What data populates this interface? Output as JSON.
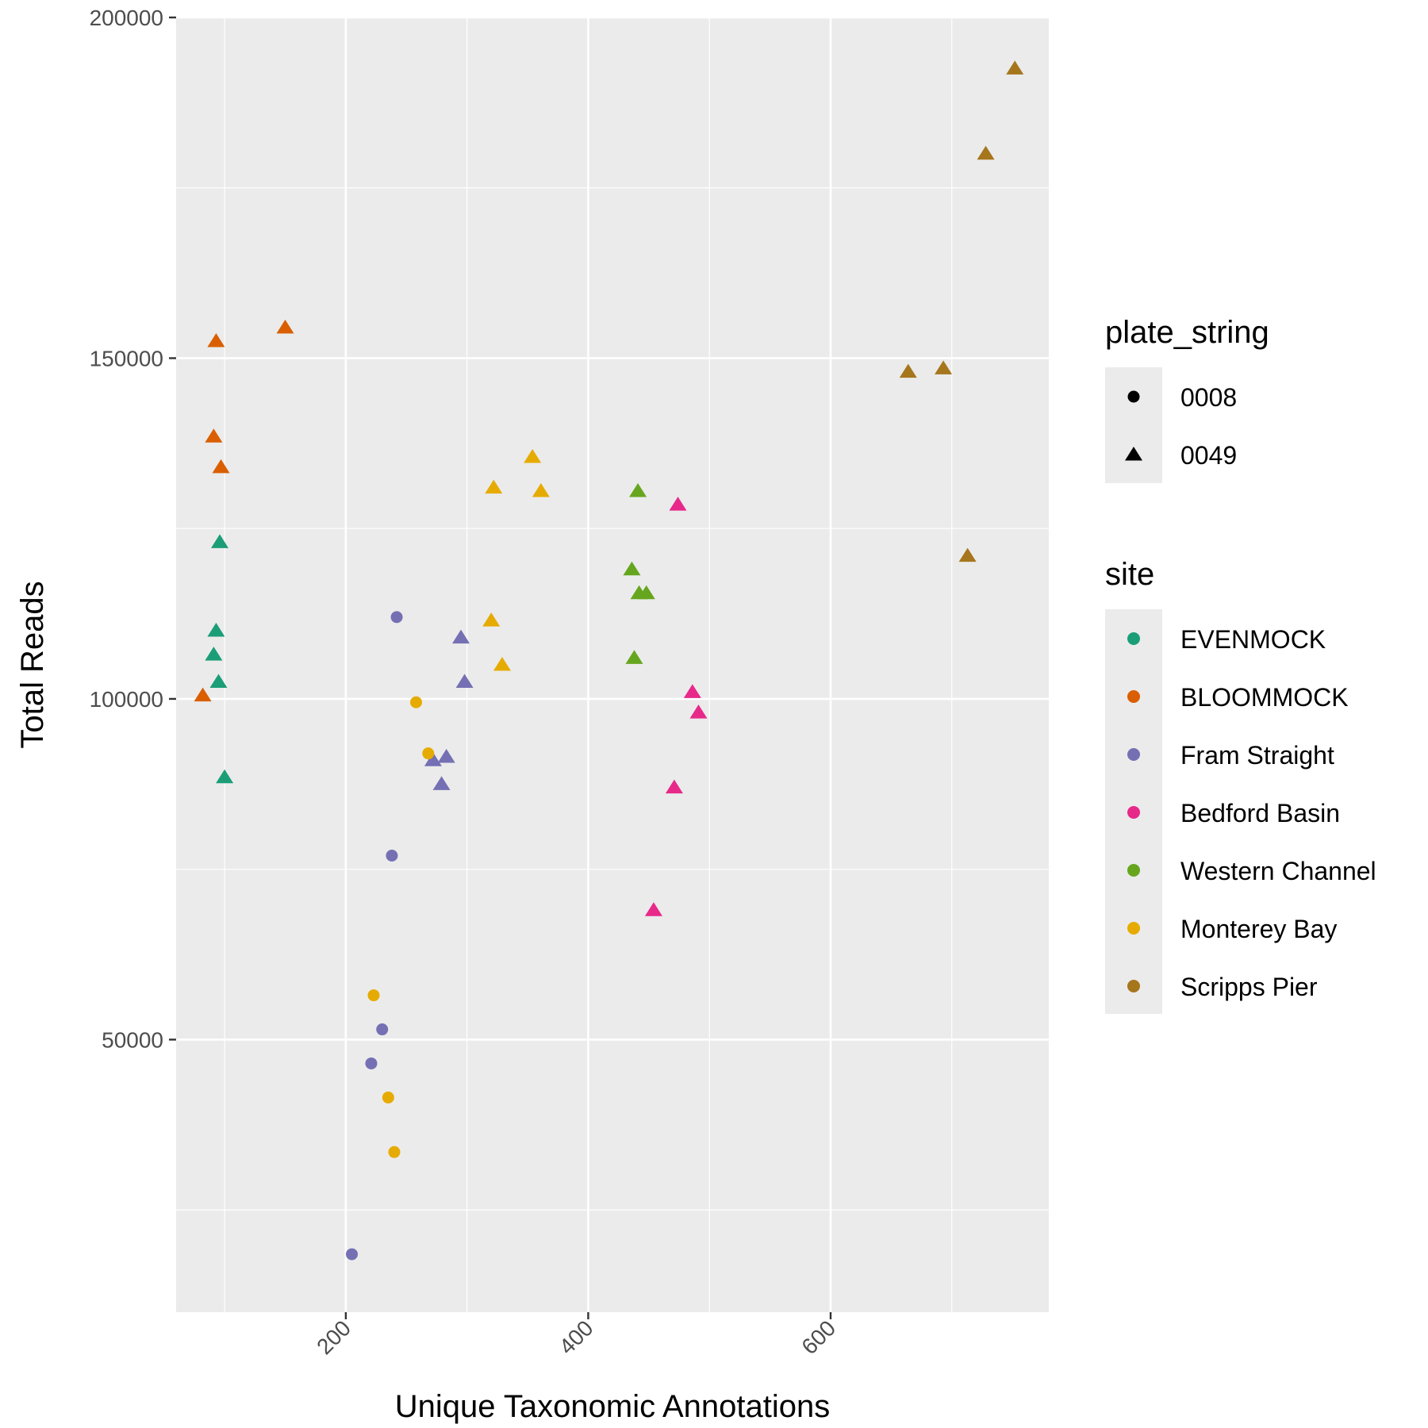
{
  "chart_data": {
    "type": "scatter",
    "xlabel": "Unique Taxonomic Annotations",
    "ylabel": "Total Reads",
    "xlim": [
      60,
      780
    ],
    "ylim": [
      10000,
      200000
    ],
    "x_ticks": [
      200,
      400,
      600
    ],
    "y_ticks": [
      50000,
      100000,
      150000,
      200000
    ],
    "x_tick_labels": [
      "200",
      "400",
      "600"
    ],
    "y_tick_labels": [
      "50000",
      "100000",
      "150000",
      "200000"
    ],
    "grid": true,
    "legend_position": "right",
    "legends": {
      "shape": {
        "title": "plate_string",
        "entries": [
          {
            "label": "0008",
            "shape": "circle"
          },
          {
            "label": "0049",
            "shape": "triangle"
          }
        ]
      },
      "color": {
        "title": "site",
        "entries": [
          {
            "label": "EVENMOCK",
            "color": "#1b9e77"
          },
          {
            "label": "BLOOMMOCK",
            "color": "#d95f02"
          },
          {
            "label": "Fram Straight",
            "color": "#7570b3"
          },
          {
            "label": "Bedford Basin",
            "color": "#e7298a"
          },
          {
            "label": "Western Channel",
            "color": "#66a61e"
          },
          {
            "label": "Monterey Bay",
            "color": "#e6ab02"
          },
          {
            "label": "Scripps Pier",
            "color": "#a6761d"
          }
        ]
      }
    },
    "series": [
      {
        "name": "EVENMOCK",
        "color": "#1b9e77",
        "points": [
          {
            "x": 96,
            "y": 123000,
            "plate": "0049"
          },
          {
            "x": 93,
            "y": 110000,
            "plate": "0049"
          },
          {
            "x": 91,
            "y": 106500,
            "plate": "0049"
          },
          {
            "x": 95,
            "y": 102500,
            "plate": "0049"
          },
          {
            "x": 100,
            "y": 88500,
            "plate": "0049"
          }
        ]
      },
      {
        "name": "BLOOMMOCK",
        "color": "#d95f02",
        "points": [
          {
            "x": 150,
            "y": 154500,
            "plate": "0049"
          },
          {
            "x": 93,
            "y": 152500,
            "plate": "0049"
          },
          {
            "x": 91,
            "y": 138500,
            "plate": "0049"
          },
          {
            "x": 97,
            "y": 134000,
            "plate": "0049"
          },
          {
            "x": 82,
            "y": 100500,
            "plate": "0049"
          }
        ]
      },
      {
        "name": "Fram Straight",
        "color": "#7570b3",
        "points": [
          {
            "x": 242,
            "y": 112000,
            "plate": "0008"
          },
          {
            "x": 238,
            "y": 77000,
            "plate": "0008"
          },
          {
            "x": 230,
            "y": 51500,
            "plate": "0008"
          },
          {
            "x": 221,
            "y": 46500,
            "plate": "0008"
          },
          {
            "x": 205,
            "y": 18500,
            "plate": "0008"
          },
          {
            "x": 295,
            "y": 109000,
            "plate": "0049"
          },
          {
            "x": 298,
            "y": 102500,
            "plate": "0049"
          },
          {
            "x": 283,
            "y": 91500,
            "plate": "0049"
          },
          {
            "x": 272,
            "y": 91000,
            "plate": "0049"
          },
          {
            "x": 279,
            "y": 87500,
            "plate": "0049"
          }
        ]
      },
      {
        "name": "Bedford Basin",
        "color": "#e7298a",
        "points": [
          {
            "x": 474,
            "y": 128500,
            "plate": "0049"
          },
          {
            "x": 486,
            "y": 101000,
            "plate": "0049"
          },
          {
            "x": 491,
            "y": 98000,
            "plate": "0049"
          },
          {
            "x": 471,
            "y": 87000,
            "plate": "0049"
          },
          {
            "x": 454,
            "y": 69000,
            "plate": "0049"
          }
        ]
      },
      {
        "name": "Western Channel",
        "color": "#66a61e",
        "points": [
          {
            "x": 441,
            "y": 130500,
            "plate": "0049"
          },
          {
            "x": 436,
            "y": 119000,
            "plate": "0049"
          },
          {
            "x": 442,
            "y": 115500,
            "plate": "0049"
          },
          {
            "x": 448,
            "y": 115500,
            "plate": "0049"
          },
          {
            "x": 438,
            "y": 106000,
            "plate": "0049"
          }
        ]
      },
      {
        "name": "Monterey Bay",
        "color": "#e6ab02",
        "points": [
          {
            "x": 258,
            "y": 99500,
            "plate": "0008"
          },
          {
            "x": 268,
            "y": 92000,
            "plate": "0008"
          },
          {
            "x": 223,
            "y": 56500,
            "plate": "0008"
          },
          {
            "x": 235,
            "y": 41500,
            "plate": "0008"
          },
          {
            "x": 240,
            "y": 33500,
            "plate": "0008"
          },
          {
            "x": 354,
            "y": 135500,
            "plate": "0049"
          },
          {
            "x": 322,
            "y": 131000,
            "plate": "0049"
          },
          {
            "x": 361,
            "y": 130500,
            "plate": "0049"
          },
          {
            "x": 320,
            "y": 111500,
            "plate": "0049"
          },
          {
            "x": 329,
            "y": 105000,
            "plate": "0049"
          }
        ]
      },
      {
        "name": "Scripps Pier",
        "color": "#a6761d",
        "points": [
          {
            "x": 752,
            "y": 192500,
            "plate": "0049"
          },
          {
            "x": 728,
            "y": 180000,
            "plate": "0049"
          },
          {
            "x": 693,
            "y": 148500,
            "plate": "0049"
          },
          {
            "x": 664,
            "y": 148000,
            "plate": "0049"
          },
          {
            "x": 713,
            "y": 121000,
            "plate": "0049"
          }
        ]
      }
    ]
  }
}
